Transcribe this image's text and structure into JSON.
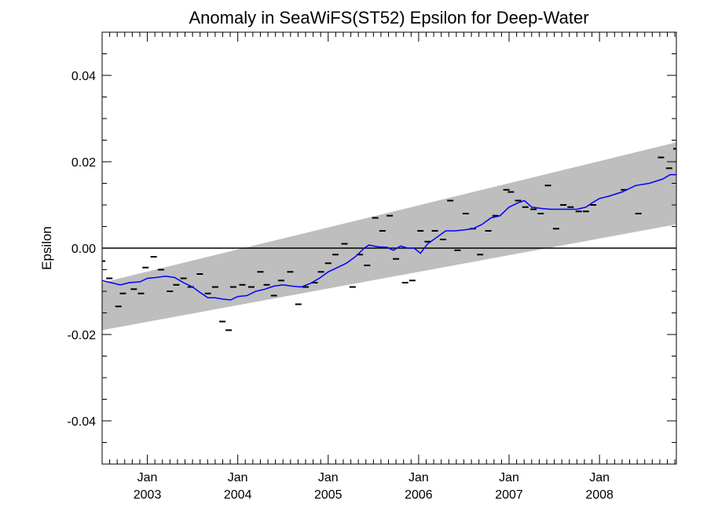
{
  "chart_data": {
    "type": "line",
    "title": "Anomaly in SeaWiFS(ST52) Epsilon for Deep-Water",
    "xlabel": "",
    "ylabel": "Epsilon",
    "xlim": [
      2002.5,
      2008.85
    ],
    "ylim": [
      -0.05,
      0.05
    ],
    "x_ticks": [
      {
        "month": "Jan",
        "year": "2003",
        "x": 2003.0
      },
      {
        "month": "Jan",
        "year": "2004",
        "x": 2004.0
      },
      {
        "month": "Jan",
        "year": "2005",
        "x": 2005.0
      },
      {
        "month": "Jan",
        "year": "2006",
        "x": 2006.0
      },
      {
        "month": "Jan",
        "year": "2007",
        "x": 2007.0
      },
      {
        "month": "Jan",
        "year": "2008",
        "x": 2008.0
      }
    ],
    "y_ticks": [
      {
        "label": "0.04",
        "value": 0.04
      },
      {
        "label": "0.02",
        "value": 0.02
      },
      {
        "label": "0.00",
        "value": 0.0
      },
      {
        "label": "-0.02",
        "value": -0.02
      },
      {
        "label": "-0.04",
        "value": -0.04
      }
    ],
    "reference_line": 0.0,
    "band": {
      "x": [
        2002.5,
        2008.85
      ],
      "lower": [
        -0.019,
        0.0055
      ],
      "upper": [
        -0.008,
        0.0245
      ],
      "color": "#bebebe"
    },
    "grid": false,
    "series": [
      {
        "kind": "marker",
        "color": "#000000",
        "points": [
          [
            2002.5,
            -0.003
          ],
          [
            2002.58,
            -0.007
          ],
          [
            2002.68,
            -0.0135
          ],
          [
            2002.73,
            -0.0105
          ],
          [
            2002.85,
            -0.0095
          ],
          [
            2002.93,
            -0.0105
          ],
          [
            2002.98,
            -0.0045
          ],
          [
            2003.07,
            -0.002
          ],
          [
            2003.15,
            -0.005
          ],
          [
            2003.25,
            -0.01
          ],
          [
            2003.32,
            -0.0085
          ],
          [
            2003.4,
            -0.007
          ],
          [
            2003.48,
            -0.009
          ],
          [
            2003.58,
            -0.006
          ],
          [
            2003.67,
            -0.0105
          ],
          [
            2003.75,
            -0.009
          ],
          [
            2003.83,
            -0.017
          ],
          [
            2003.9,
            -0.019
          ],
          [
            2003.95,
            -0.009
          ],
          [
            2004.05,
            -0.0085
          ],
          [
            2004.15,
            -0.009
          ],
          [
            2004.25,
            -0.0055
          ],
          [
            2004.32,
            -0.0085
          ],
          [
            2004.4,
            -0.011
          ],
          [
            2004.48,
            -0.0075
          ],
          [
            2004.58,
            -0.0055
          ],
          [
            2004.67,
            -0.013
          ],
          [
            2004.75,
            -0.009
          ],
          [
            2004.85,
            -0.008
          ],
          [
            2004.92,
            -0.0055
          ],
          [
            2005.0,
            -0.0035
          ],
          [
            2005.08,
            -0.0015
          ],
          [
            2005.18,
            0.001
          ],
          [
            2005.27,
            -0.009
          ],
          [
            2005.35,
            -0.0015
          ],
          [
            2005.43,
            -0.004
          ],
          [
            2005.52,
            0.007
          ],
          [
            2005.6,
            0.004
          ],
          [
            2005.68,
            0.0075
          ],
          [
            2005.75,
            -0.0025
          ],
          [
            2005.85,
            -0.008
          ],
          [
            2005.93,
            -0.0075
          ],
          [
            2006.02,
            0.004
          ],
          [
            2006.1,
            0.0015
          ],
          [
            2006.18,
            0.004
          ],
          [
            2006.27,
            0.002
          ],
          [
            2006.35,
            0.011
          ],
          [
            2006.43,
            -0.0005
          ],
          [
            2006.52,
            0.008
          ],
          [
            2006.6,
            0.0045
          ],
          [
            2006.68,
            -0.0015
          ],
          [
            2006.77,
            0.004
          ],
          [
            2006.85,
            0.0075
          ],
          [
            2006.97,
            0.0135
          ],
          [
            2007.02,
            0.013
          ],
          [
            2007.1,
            0.011
          ],
          [
            2007.18,
            0.0095
          ],
          [
            2007.27,
            0.009
          ],
          [
            2007.35,
            0.008
          ],
          [
            2007.43,
            0.0145
          ],
          [
            2007.52,
            0.0045
          ],
          [
            2007.6,
            0.01
          ],
          [
            2007.68,
            0.0095
          ],
          [
            2007.77,
            0.0085
          ],
          [
            2007.85,
            0.0085
          ],
          [
            2007.93,
            0.01
          ],
          [
            2008.27,
            0.0135
          ],
          [
            2008.43,
            0.008
          ],
          [
            2008.68,
            0.021
          ],
          [
            2008.77,
            0.0185
          ],
          [
            2008.85,
            0.023
          ]
        ]
      },
      {
        "kind": "line",
        "color": "#0000ff",
        "points": [
          [
            2002.5,
            -0.0075
          ],
          [
            2002.6,
            -0.008
          ],
          [
            2002.7,
            -0.0085
          ],
          [
            2002.8,
            -0.008
          ],
          [
            2002.92,
            -0.0078
          ],
          [
            2003.0,
            -0.007
          ],
          [
            2003.1,
            -0.0068
          ],
          [
            2003.2,
            -0.0065
          ],
          [
            2003.3,
            -0.0068
          ],
          [
            2003.4,
            -0.008
          ],
          [
            2003.5,
            -0.009
          ],
          [
            2003.6,
            -0.0105
          ],
          [
            2003.67,
            -0.0115
          ],
          [
            2003.75,
            -0.0115
          ],
          [
            2003.83,
            -0.0118
          ],
          [
            2003.92,
            -0.012
          ],
          [
            2004.0,
            -0.0112
          ],
          [
            2004.1,
            -0.011
          ],
          [
            2004.2,
            -0.01
          ],
          [
            2004.3,
            -0.0095
          ],
          [
            2004.4,
            -0.0088
          ],
          [
            2004.5,
            -0.0085
          ],
          [
            2004.6,
            -0.0088
          ],
          [
            2004.7,
            -0.009
          ],
          [
            2004.8,
            -0.0082
          ],
          [
            2004.9,
            -0.007
          ],
          [
            2005.0,
            -0.0055
          ],
          [
            2005.1,
            -0.0045
          ],
          [
            2005.2,
            -0.0035
          ],
          [
            2005.3,
            -0.002
          ],
          [
            2005.4,
            0.0
          ],
          [
            2005.45,
            0.0007
          ],
          [
            2005.55,
            0.0003
          ],
          [
            2005.65,
            0.0002
          ],
          [
            2005.72,
            -0.0005
          ],
          [
            2005.8,
            0.0005
          ],
          [
            2005.88,
            0.0
          ],
          [
            2005.95,
            0.0
          ],
          [
            2006.02,
            -0.0012
          ],
          [
            2006.1,
            0.001
          ],
          [
            2006.2,
            0.0025
          ],
          [
            2006.3,
            0.004
          ],
          [
            2006.4,
            0.004
          ],
          [
            2006.5,
            0.0042
          ],
          [
            2006.6,
            0.0045
          ],
          [
            2006.7,
            0.0055
          ],
          [
            2006.8,
            0.007
          ],
          [
            2006.9,
            0.0075
          ],
          [
            2007.0,
            0.0095
          ],
          [
            2007.1,
            0.0105
          ],
          [
            2007.17,
            0.011
          ],
          [
            2007.25,
            0.0095
          ],
          [
            2007.35,
            0.0092
          ],
          [
            2007.45,
            0.009
          ],
          [
            2007.55,
            0.009
          ],
          [
            2007.65,
            0.009
          ],
          [
            2007.75,
            0.009
          ],
          [
            2007.85,
            0.0095
          ],
          [
            2007.92,
            0.0105
          ],
          [
            2008.0,
            0.0115
          ],
          [
            2008.1,
            0.012
          ],
          [
            2008.25,
            0.013
          ],
          [
            2008.4,
            0.0145
          ],
          [
            2008.55,
            0.015
          ],
          [
            2008.7,
            0.016
          ],
          [
            2008.78,
            0.017
          ],
          [
            2008.85,
            0.017
          ]
        ]
      }
    ]
  }
}
